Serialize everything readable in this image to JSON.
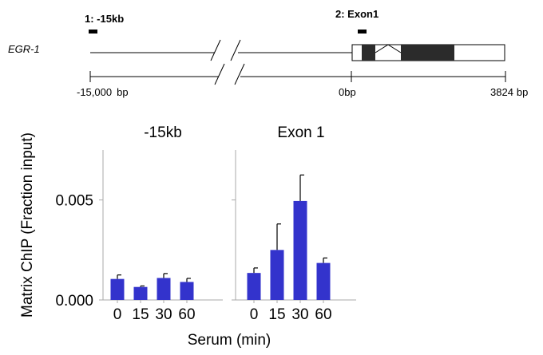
{
  "gene_map": {
    "gene_name": "EGR-1",
    "probe1_label": "1: -15kb",
    "probe2_label": "2: Exon1",
    "scale_left": "-15,000",
    "scale_left_unit": "bp",
    "scale_mid": "0bp",
    "scale_right": "3824",
    "scale_right_unit": "bp"
  },
  "colors": {
    "bar": "#3333cc",
    "exon": "#2b2b2b",
    "axis": "#aaaaaa"
  },
  "chart_data": {
    "type": "bar",
    "ylabel": "Matrix ChIP (Fraction input)",
    "xlabel": "Serum (min)",
    "ylim": [
      0,
      0.0075
    ],
    "yticks": [
      "0.000",
      "0.005"
    ],
    "ytick_values": [
      0,
      0.005
    ],
    "categories": [
      "0",
      "15",
      "30",
      "60"
    ],
    "panels": [
      {
        "title": "-15kb",
        "values": [
          0.00105,
          0.00065,
          0.0011,
          0.0009
        ],
        "errors": [
          0.0002,
          5e-05,
          0.00022,
          0.00018
        ]
      },
      {
        "title": "Exon 1",
        "values": [
          0.00135,
          0.0025,
          0.00495,
          0.00185
        ],
        "errors": [
          0.00025,
          0.0013,
          0.0013,
          0.00025
        ]
      }
    ]
  }
}
